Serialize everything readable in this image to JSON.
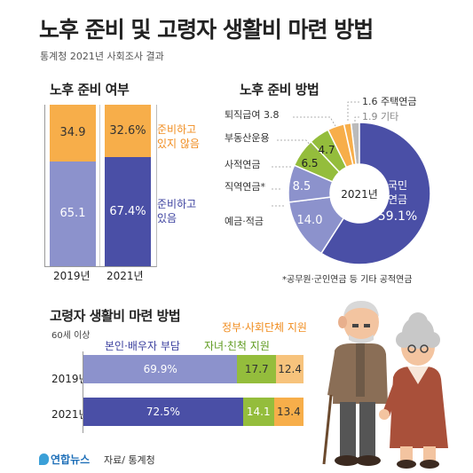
{
  "title": "노후 준비 및 고령자 생활비 마련 방법",
  "subtitle": "통계청 2021년 사회조사 결과",
  "colors": {
    "not_prepared": "#F7AE4A",
    "prepared_2019": "#8C92CC",
    "prepared_2021": "#4A4FA6",
    "self": "#8C92CC",
    "self_2021": "#4A4FA6",
    "children": "#94BD3C",
    "gov": "#F7C37C",
    "gov_2021": "#F7AE4A",
    "orange_text": "#F08C1E",
    "blue_text": "#3A3F9E",
    "green_text": "#5E9A1E",
    "gray_text": "#888888"
  },
  "prep": {
    "heading": "노후 준비 여부",
    "years": [
      "2019년",
      "2021년"
    ],
    "label_not": "준비하고\n있지 않음",
    "label_yes": "준비하고\n있음",
    "chart_data": {
      "type": "bar",
      "stacked": true,
      "categories": [
        "2019년",
        "2021년"
      ],
      "series": [
        {
          "name": "준비하고 있음",
          "values": [
            65.1,
            67.4
          ],
          "labels": [
            "65.1",
            "67.4%"
          ]
        },
        {
          "name": "준비하고 있지 않음",
          "values": [
            34.9,
            32.6
          ],
          "labels": [
            "34.9",
            "32.6%"
          ]
        }
      ]
    }
  },
  "method": {
    "heading": "노후 준비 방법",
    "center": "2021년",
    "footnote": "*공무원·군인연금 등 기타 공적연금",
    "chart_data": {
      "type": "pie",
      "slices": [
        {
          "name": "국민연금",
          "value": 59.1,
          "label": "59.1%",
          "color": "#4A4FA6"
        },
        {
          "name": "예금·적금",
          "value": 14.0,
          "label": "14.0",
          "color": "#8C92CC"
        },
        {
          "name": "직역연금*",
          "value": 8.5,
          "label": "8.5",
          "color": "#8C92CC"
        },
        {
          "name": "사적연금",
          "value": 6.5,
          "label": "6.5",
          "color": "#94BD3C"
        },
        {
          "name": "부동산운용",
          "value": 4.7,
          "label": "4.7",
          "color": "#94BD3C"
        },
        {
          "name": "퇴직급여",
          "value": 3.8,
          "label": "3.8",
          "color": "#F7AE4A"
        },
        {
          "name": "주택연금",
          "value": 1.6,
          "label": "1.6",
          "color": "#F7AE4A"
        },
        {
          "name": "기타",
          "value": 1.9,
          "label": "1.9",
          "color": "#BBBBBB"
        }
      ]
    },
    "labels": {
      "national_name": "국민",
      "national_name2": "연금",
      "national_value": "59.1%",
      "deposit": "예금·적금",
      "deposit_value": "14.0",
      "jikyeok": "직역연금*",
      "jikyeok_value": "8.5",
      "private": "사적연금",
      "private_value": "6.5",
      "realestate": "부동산운용",
      "realestate_value": "4.7",
      "retire": "퇴직급여 3.8",
      "housing": "1.6 주택연금",
      "other": "1.9 기타"
    }
  },
  "living": {
    "heading": "고령자 생활비 마련 방법",
    "note": "60세 이상",
    "legend_self": "본인·배우자 부담",
    "legend_gov": "정부·사회단체 지원",
    "legend_children": "자녀·친척 지원",
    "years": [
      "2019년",
      "2021년"
    ],
    "chart_data": {
      "type": "bar",
      "orientation": "horizontal",
      "stacked": true,
      "categories": [
        "2019년",
        "2021년"
      ],
      "series": [
        {
          "name": "본인·배우자 부담",
          "values": [
            69.9,
            72.5
          ],
          "labels": [
            "69.9%",
            "72.5%"
          ]
        },
        {
          "name": "자녀·친척 지원",
          "values": [
            17.7,
            14.1
          ],
          "labels": [
            "17.7",
            "14.1"
          ]
        },
        {
          "name": "정부·사회단체 지원",
          "values": [
            12.4,
            13.4
          ],
          "labels": [
            "12.4",
            "13.4"
          ]
        }
      ]
    }
  },
  "footer": {
    "logo": "연합뉴스",
    "source": "자료/ 통계청"
  }
}
